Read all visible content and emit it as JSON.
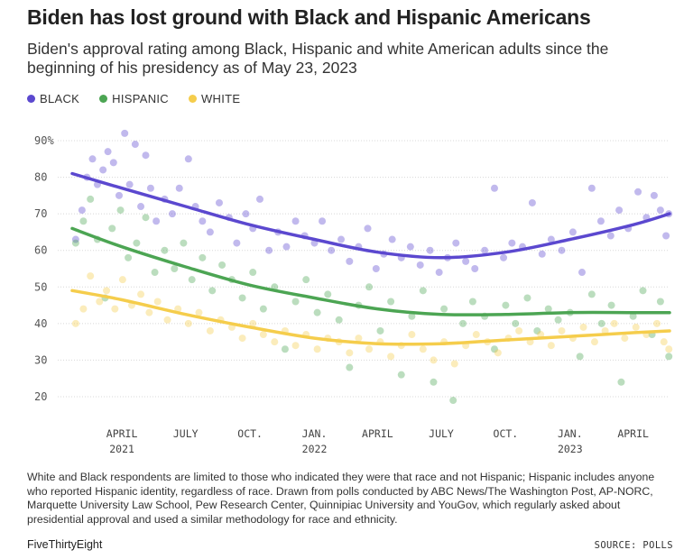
{
  "header": {
    "title": "Biden has lost ground with Black and Hispanic Americans",
    "subtitle": "Biden's approval rating among Black, Hispanic and white American adults since the beginning of his presidency as of May 23, 2023"
  },
  "footer": {
    "note": "White and Black respondents are limited to those who indicated they were that race and not Hispanic; Hispanic includes anyone who reported Hispanic identity, regardless of race. Drawn from polls conducted by ABC News/The Washington Post, AP-NORC, Marquette University Law School, Pew Research Center, Quinnipiac University and YouGov, which regularly asked about presidential approval and used a similar methodology for race and ethnicity.",
    "brand": "FiveThirtyEight",
    "source": "SOURCE: POLLS"
  },
  "chart_data": {
    "type": "scatter",
    "x_axis": {
      "type": "date",
      "range": [
        "2021-01-20",
        "2023-05-23"
      ]
    },
    "y_axis": {
      "range": [
        20,
        90
      ],
      "ticks": [
        20,
        30,
        40,
        50,
        60,
        70,
        80,
        90
      ],
      "tick_labels": [
        "20",
        "30",
        "40",
        "50",
        "60",
        "70",
        "80",
        "90%"
      ]
    },
    "x_ticks": [
      {
        "date": "2021-04-01",
        "label": "APRIL",
        "year": "2021"
      },
      {
        "date": "2021-07-01",
        "label": "JULY",
        "year": ""
      },
      {
        "date": "2021-10-01",
        "label": "OCT.",
        "year": ""
      },
      {
        "date": "2022-01-01",
        "label": "JAN.",
        "year": "2022"
      },
      {
        "date": "2022-04-01",
        "label": "APRIL",
        "year": ""
      },
      {
        "date": "2022-07-01",
        "label": "JULY",
        "year": ""
      },
      {
        "date": "2022-10-01",
        "label": "OCT.",
        "year": ""
      },
      {
        "date": "2023-01-01",
        "label": "JAN.",
        "year": "2023"
      },
      {
        "date": "2023-04-01",
        "label": "APRIL",
        "year": ""
      }
    ],
    "grid": "horizontal",
    "legend_position": "top-left",
    "series": [
      {
        "name": "BLACK",
        "color": "#5b48cf",
        "trend": [
          [
            "2021-01-20",
            81
          ],
          [
            "2021-04-01",
            77
          ],
          [
            "2021-07-01",
            72
          ],
          [
            "2021-10-01",
            67
          ],
          [
            "2022-01-01",
            63
          ],
          [
            "2022-04-01",
            59.5
          ],
          [
            "2022-07-01",
            58
          ],
          [
            "2022-10-01",
            59.5
          ],
          [
            "2023-01-01",
            63
          ],
          [
            "2023-04-01",
            67
          ],
          [
            "2023-05-23",
            70
          ]
        ],
        "points": [
          [
            "2021-01-25",
            63
          ],
          [
            "2021-02-03",
            71
          ],
          [
            "2021-02-10",
            80
          ],
          [
            "2021-02-18",
            85
          ],
          [
            "2021-02-25",
            78
          ],
          [
            "2021-03-05",
            82
          ],
          [
            "2021-03-12",
            87
          ],
          [
            "2021-03-20",
            84
          ],
          [
            "2021-03-28",
            75
          ],
          [
            "2021-04-05",
            92
          ],
          [
            "2021-04-12",
            78
          ],
          [
            "2021-04-20",
            89
          ],
          [
            "2021-04-28",
            72
          ],
          [
            "2021-05-05",
            86
          ],
          [
            "2021-05-12",
            77
          ],
          [
            "2021-05-20",
            68
          ],
          [
            "2021-06-01",
            74
          ],
          [
            "2021-06-12",
            70
          ],
          [
            "2021-06-22",
            77
          ],
          [
            "2021-07-05",
            85
          ],
          [
            "2021-07-15",
            72
          ],
          [
            "2021-07-25",
            68
          ],
          [
            "2021-08-05",
            65
          ],
          [
            "2021-08-18",
            73
          ],
          [
            "2021-09-01",
            69
          ],
          [
            "2021-09-12",
            62
          ],
          [
            "2021-09-25",
            70
          ],
          [
            "2021-10-05",
            66
          ],
          [
            "2021-10-15",
            74
          ],
          [
            "2021-10-28",
            60
          ],
          [
            "2021-11-10",
            65
          ],
          [
            "2021-11-22",
            61
          ],
          [
            "2021-12-05",
            68
          ],
          [
            "2021-12-18",
            64
          ],
          [
            "2022-01-01",
            62
          ],
          [
            "2022-01-12",
            68
          ],
          [
            "2022-01-25",
            60
          ],
          [
            "2022-02-08",
            63
          ],
          [
            "2022-02-20",
            57
          ],
          [
            "2022-03-05",
            61
          ],
          [
            "2022-03-18",
            66
          ],
          [
            "2022-03-30",
            55
          ],
          [
            "2022-04-10",
            59
          ],
          [
            "2022-04-22",
            63
          ],
          [
            "2022-05-05",
            58
          ],
          [
            "2022-05-18",
            61
          ],
          [
            "2022-06-01",
            56
          ],
          [
            "2022-06-15",
            60
          ],
          [
            "2022-06-28",
            54
          ],
          [
            "2022-07-10",
            58
          ],
          [
            "2022-07-22",
            62
          ],
          [
            "2022-08-05",
            57
          ],
          [
            "2022-08-18",
            55
          ],
          [
            "2022-09-01",
            60
          ],
          [
            "2022-09-15",
            77
          ],
          [
            "2022-09-28",
            58
          ],
          [
            "2022-10-10",
            62
          ],
          [
            "2022-10-25",
            61
          ],
          [
            "2022-11-08",
            73
          ],
          [
            "2022-11-22",
            59
          ],
          [
            "2022-12-05",
            63
          ],
          [
            "2022-12-20",
            60
          ],
          [
            "2023-01-05",
            65
          ],
          [
            "2023-01-18",
            54
          ],
          [
            "2023-02-01",
            77
          ],
          [
            "2023-02-14",
            68
          ],
          [
            "2023-02-28",
            64
          ],
          [
            "2023-03-12",
            71
          ],
          [
            "2023-03-25",
            66
          ],
          [
            "2023-04-08",
            76
          ],
          [
            "2023-04-20",
            69
          ],
          [
            "2023-05-01",
            75
          ],
          [
            "2023-05-10",
            71
          ],
          [
            "2023-05-18",
            64
          ],
          [
            "2023-05-22",
            70
          ]
        ]
      },
      {
        "name": "HISPANIC",
        "color": "#4ca553",
        "trend": [
          [
            "2021-01-20",
            66
          ],
          [
            "2021-04-01",
            61
          ],
          [
            "2021-07-01",
            55.5
          ],
          [
            "2021-10-01",
            50.5
          ],
          [
            "2022-01-01",
            47
          ],
          [
            "2022-04-01",
            44
          ],
          [
            "2022-07-01",
            42.5
          ],
          [
            "2022-10-01",
            42.5
          ],
          [
            "2023-01-01",
            43
          ],
          [
            "2023-04-01",
            43
          ],
          [
            "2023-05-23",
            43
          ]
        ],
        "points": [
          [
            "2021-01-25",
            62
          ],
          [
            "2021-02-05",
            68
          ],
          [
            "2021-02-15",
            74
          ],
          [
            "2021-02-25",
            63
          ],
          [
            "2021-03-08",
            47
          ],
          [
            "2021-03-18",
            66
          ],
          [
            "2021-03-30",
            71
          ],
          [
            "2021-04-10",
            58
          ],
          [
            "2021-04-22",
            62
          ],
          [
            "2021-05-05",
            69
          ],
          [
            "2021-05-18",
            54
          ],
          [
            "2021-06-01",
            60
          ],
          [
            "2021-06-15",
            55
          ],
          [
            "2021-06-28",
            62
          ],
          [
            "2021-07-10",
            52
          ],
          [
            "2021-07-25",
            58
          ],
          [
            "2021-08-08",
            49
          ],
          [
            "2021-08-22",
            56
          ],
          [
            "2021-09-05",
            52
          ],
          [
            "2021-09-20",
            47
          ],
          [
            "2021-10-05",
            54
          ],
          [
            "2021-10-20",
            44
          ],
          [
            "2021-11-05",
            50
          ],
          [
            "2021-11-20",
            33
          ],
          [
            "2021-12-05",
            46
          ],
          [
            "2021-12-20",
            52
          ],
          [
            "2022-01-05",
            43
          ],
          [
            "2022-01-20",
            48
          ],
          [
            "2022-02-05",
            41
          ],
          [
            "2022-02-20",
            28
          ],
          [
            "2022-03-05",
            45
          ],
          [
            "2022-03-20",
            50
          ],
          [
            "2022-04-05",
            38
          ],
          [
            "2022-04-20",
            46
          ],
          [
            "2022-05-05",
            26
          ],
          [
            "2022-05-20",
            42
          ],
          [
            "2022-06-05",
            49
          ],
          [
            "2022-06-20",
            24
          ],
          [
            "2022-07-05",
            44
          ],
          [
            "2022-07-18",
            19
          ],
          [
            "2022-08-01",
            40
          ],
          [
            "2022-08-15",
            46
          ],
          [
            "2022-09-01",
            42
          ],
          [
            "2022-09-15",
            33
          ],
          [
            "2022-10-01",
            45
          ],
          [
            "2022-10-15",
            40
          ],
          [
            "2022-11-01",
            47
          ],
          [
            "2022-11-15",
            38
          ],
          [
            "2022-12-01",
            44
          ],
          [
            "2022-12-15",
            41
          ],
          [
            "2023-01-01",
            43
          ],
          [
            "2023-01-15",
            31
          ],
          [
            "2023-02-01",
            48
          ],
          [
            "2023-02-15",
            40
          ],
          [
            "2023-03-01",
            45
          ],
          [
            "2023-03-15",
            24
          ],
          [
            "2023-04-01",
            42
          ],
          [
            "2023-04-15",
            49
          ],
          [
            "2023-04-28",
            37
          ],
          [
            "2023-05-10",
            46
          ],
          [
            "2023-05-22",
            31
          ]
        ]
      },
      {
        "name": "WHITE",
        "color": "#f5cd4c",
        "trend": [
          [
            "2021-01-20",
            49
          ],
          [
            "2021-04-01",
            46.5
          ],
          [
            "2021-07-01",
            42.5
          ],
          [
            "2021-10-01",
            39
          ],
          [
            "2022-01-01",
            36
          ],
          [
            "2022-04-01",
            34.5
          ],
          [
            "2022-07-01",
            34.5
          ],
          [
            "2022-10-01",
            35.5
          ],
          [
            "2023-01-01",
            36.5
          ],
          [
            "2023-04-01",
            37.5
          ],
          [
            "2023-05-23",
            38
          ]
        ],
        "points": [
          [
            "2021-01-25",
            40
          ],
          [
            "2021-02-05",
            44
          ],
          [
            "2021-02-15",
            53
          ],
          [
            "2021-02-28",
            46
          ],
          [
            "2021-03-10",
            49
          ],
          [
            "2021-03-22",
            44
          ],
          [
            "2021-04-02",
            52
          ],
          [
            "2021-04-15",
            45
          ],
          [
            "2021-04-28",
            48
          ],
          [
            "2021-05-10",
            43
          ],
          [
            "2021-05-22",
            46
          ],
          [
            "2021-06-05",
            41
          ],
          [
            "2021-06-20",
            44
          ],
          [
            "2021-07-05",
            40
          ],
          [
            "2021-07-20",
            43
          ],
          [
            "2021-08-05",
            38
          ],
          [
            "2021-08-20",
            41
          ],
          [
            "2021-09-05",
            39
          ],
          [
            "2021-09-20",
            36
          ],
          [
            "2021-10-05",
            40
          ],
          [
            "2021-10-20",
            37
          ],
          [
            "2021-11-05",
            35
          ],
          [
            "2021-11-20",
            38
          ],
          [
            "2021-12-05",
            34
          ],
          [
            "2021-12-20",
            37
          ],
          [
            "2022-01-05",
            33
          ],
          [
            "2022-01-20",
            36
          ],
          [
            "2022-02-05",
            35
          ],
          [
            "2022-02-20",
            32
          ],
          [
            "2022-03-05",
            36
          ],
          [
            "2022-03-20",
            33
          ],
          [
            "2022-04-05",
            35
          ],
          [
            "2022-04-20",
            31
          ],
          [
            "2022-05-05",
            34
          ],
          [
            "2022-05-20",
            37
          ],
          [
            "2022-06-05",
            33
          ],
          [
            "2022-06-20",
            30
          ],
          [
            "2022-07-05",
            35
          ],
          [
            "2022-07-20",
            29
          ],
          [
            "2022-08-05",
            34
          ],
          [
            "2022-08-20",
            37
          ],
          [
            "2022-09-05",
            35
          ],
          [
            "2022-09-20",
            32
          ],
          [
            "2022-10-05",
            36
          ],
          [
            "2022-10-20",
            38
          ],
          [
            "2022-11-05",
            35
          ],
          [
            "2022-11-20",
            37
          ],
          [
            "2022-12-05",
            34
          ],
          [
            "2022-12-20",
            38
          ],
          [
            "2023-01-05",
            36
          ],
          [
            "2023-01-20",
            39
          ],
          [
            "2023-02-05",
            35
          ],
          [
            "2023-02-20",
            38
          ],
          [
            "2023-03-05",
            40
          ],
          [
            "2023-03-20",
            36
          ],
          [
            "2023-04-05",
            39
          ],
          [
            "2023-04-20",
            37
          ],
          [
            "2023-05-05",
            40
          ],
          [
            "2023-05-15",
            35
          ],
          [
            "2023-05-22",
            33
          ]
        ]
      }
    ]
  }
}
